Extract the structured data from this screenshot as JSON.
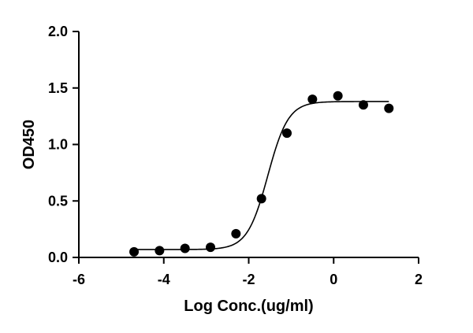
{
  "chart_data": {
    "type": "scatter",
    "xlabel": "Log Conc.(ug/ml)",
    "ylabel": "OD450",
    "xlim": [
      -6,
      2
    ],
    "ylim": [
      0,
      2
    ],
    "x_ticks": [
      -6,
      -4,
      -2,
      0,
      2
    ],
    "y_ticks": [
      0.0,
      0.5,
      1.0,
      1.5,
      2.0
    ],
    "x_tick_labels": [
      "-6",
      "-4",
      "-2",
      "0",
      "2"
    ],
    "y_tick_labels": [
      "0.0",
      "0.5",
      "1.0",
      "1.5",
      "2.0"
    ],
    "grid": false,
    "legend": false,
    "series": [
      {
        "marker": "circle",
        "color": "#000000",
        "points": [
          {
            "x": -4.7,
            "y": 0.05
          },
          {
            "x": -4.1,
            "y": 0.06
          },
          {
            "x": -3.5,
            "y": 0.08
          },
          {
            "x": -2.9,
            "y": 0.09
          },
          {
            "x": -2.3,
            "y": 0.21
          },
          {
            "x": -1.7,
            "y": 0.52
          },
          {
            "x": -1.1,
            "y": 1.1
          },
          {
            "x": -0.5,
            "y": 1.4
          },
          {
            "x": 0.1,
            "y": 1.43
          },
          {
            "x": 0.7,
            "y": 1.35
          },
          {
            "x": 1.3,
            "y": 1.32
          }
        ]
      }
    ],
    "fit_curve": {
      "type": "4PL sigmoid",
      "bottom": 0.07,
      "top": 1.38,
      "log_ec50": -1.55,
      "hill_slope": 1.8,
      "x_range": [
        -4.7,
        1.3
      ],
      "color": "#000000"
    }
  }
}
